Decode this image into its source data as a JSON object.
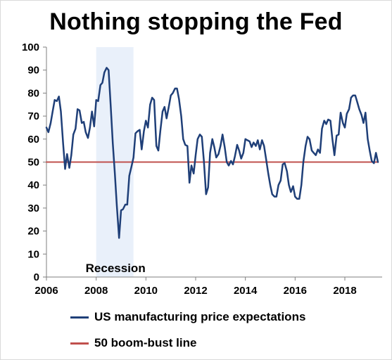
{
  "chart_data": {
    "type": "line",
    "title": "Nothing stopping the Fed",
    "xlim": [
      2006,
      2019.5
    ],
    "ylim": [
      0,
      100
    ],
    "x_ticks": [
      2006,
      2008,
      2010,
      2012,
      2014,
      2016,
      2018
    ],
    "y_ticks": [
      0,
      10,
      20,
      30,
      40,
      50,
      60,
      70,
      80,
      90,
      100
    ],
    "grid": false,
    "legend_position": "bottom",
    "annotations": [
      {
        "text": "Recession",
        "x_start": 2008.0,
        "x_end": 2009.5
      }
    ],
    "series": [
      {
        "name": "US manufacturing price expectations",
        "color": "#1f3f78",
        "x": [
          2006.0,
          2006.08,
          2006.17,
          2006.25,
          2006.33,
          2006.42,
          2006.5,
          2006.58,
          2006.67,
          2006.75,
          2006.83,
          2006.92,
          2007.0,
          2007.08,
          2007.17,
          2007.25,
          2007.33,
          2007.42,
          2007.5,
          2007.58,
          2007.67,
          2007.75,
          2007.83,
          2007.92,
          2008.0,
          2008.08,
          2008.17,
          2008.25,
          2008.33,
          2008.42,
          2008.5,
          2008.58,
          2008.67,
          2008.75,
          2008.83,
          2008.92,
          2009.0,
          2009.08,
          2009.17,
          2009.25,
          2009.33,
          2009.42,
          2009.5,
          2009.58,
          2009.67,
          2009.75,
          2009.83,
          2009.92,
          2010.0,
          2010.08,
          2010.17,
          2010.25,
          2010.33,
          2010.42,
          2010.5,
          2010.58,
          2010.67,
          2010.75,
          2010.83,
          2010.92,
          2011.0,
          2011.08,
          2011.17,
          2011.25,
          2011.33,
          2011.42,
          2011.5,
          2011.58,
          2011.67,
          2011.75,
          2011.83,
          2011.92,
          2012.0,
          2012.08,
          2012.17,
          2012.25,
          2012.33,
          2012.42,
          2012.5,
          2012.58,
          2012.67,
          2012.75,
          2012.83,
          2012.92,
          2013.0,
          2013.08,
          2013.17,
          2013.25,
          2013.33,
          2013.42,
          2013.5,
          2013.58,
          2013.67,
          2013.75,
          2013.83,
          2013.92,
          2014.0,
          2014.08,
          2014.17,
          2014.25,
          2014.33,
          2014.42,
          2014.5,
          2014.58,
          2014.67,
          2014.75,
          2014.83,
          2014.92,
          2015.0,
          2015.08,
          2015.17,
          2015.25,
          2015.33,
          2015.42,
          2015.5,
          2015.58,
          2015.67,
          2015.75,
          2015.83,
          2015.92,
          2016.0,
          2016.08,
          2016.17,
          2016.25,
          2016.33,
          2016.42,
          2016.5,
          2016.58,
          2016.67,
          2016.75,
          2016.83,
          2016.92,
          2017.0,
          2017.08,
          2017.17,
          2017.25,
          2017.33,
          2017.42,
          2017.5,
          2017.58,
          2017.67,
          2017.75,
          2017.83,
          2017.92,
          2018.0,
          2018.08,
          2018.17,
          2018.25,
          2018.33,
          2018.42,
          2018.5,
          2018.58,
          2018.67,
          2018.75,
          2018.83,
          2018.92,
          2019.0,
          2019.08,
          2019.17,
          2019.25,
          2019.33
        ],
        "y": [
          65,
          63,
          67,
          72,
          77,
          76.5,
          78.5,
          72,
          58,
          47,
          53.5,
          47.5,
          53,
          62,
          64.5,
          73,
          72.5,
          67,
          67.5,
          63,
          60.5,
          65,
          72,
          65.5,
          77,
          76.5,
          83.5,
          84.5,
          89,
          91,
          90,
          75,
          58,
          45,
          31,
          17,
          29,
          29.5,
          31.5,
          31.5,
          44,
          48,
          52,
          62.5,
          63.5,
          64,
          55.5,
          63.5,
          68,
          65,
          75,
          78,
          77,
          57,
          55,
          63.5,
          72,
          74,
          69,
          74,
          79,
          80,
          82,
          82,
          77.5,
          70,
          60,
          57.5,
          57,
          41,
          48.5,
          45,
          53,
          60,
          62,
          61,
          50.5,
          36,
          39,
          54,
          60,
          56.5,
          52,
          53.5,
          57,
          62,
          56.5,
          50,
          48.5,
          50.5,
          49,
          52.5,
          57.5,
          55,
          51.5,
          54,
          60,
          59.5,
          59,
          56.5,
          58.5,
          57,
          59.5,
          55.5,
          59.5,
          57,
          51.5,
          45,
          40,
          36,
          35,
          35,
          40,
          42,
          49,
          49.5,
          46,
          40,
          37,
          39.5,
          35,
          34,
          34,
          40,
          50,
          57,
          61,
          60,
          55,
          54,
          53,
          55.5,
          54,
          64.5,
          68,
          66.5,
          68.5,
          68,
          60,
          53,
          61.5,
          62,
          71.5,
          67,
          65,
          71,
          73,
          78,
          79,
          79,
          76,
          73,
          70.5,
          67,
          71.5,
          60,
          55,
          50.5,
          49.5,
          54,
          50
        ]
      },
      {
        "name": "50 boom-bust line",
        "color": "#c0504d",
        "x": [
          2006.0,
          2019.33
        ],
        "y": [
          50,
          50
        ]
      }
    ]
  }
}
